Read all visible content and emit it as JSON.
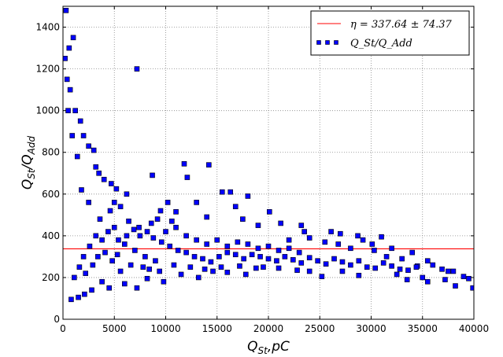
{
  "chart_data": {
    "type": "scatter",
    "xlabel": "Q",
    "xlabel_sub": "St",
    "xlabel_suffix": ",pC",
    "ylabel": "Q",
    "ylabel_sub1": "St",
    "ylabel_mid": "/Q",
    "ylabel_sub2": "Add",
    "xlim": [
      0,
      40000
    ],
    "ylim": [
      0,
      1500
    ],
    "xticks": [
      0,
      5000,
      10000,
      15000,
      20000,
      25000,
      30000,
      35000,
      40000
    ],
    "yticks": [
      0,
      200,
      400,
      600,
      800,
      1000,
      1200,
      1400
    ],
    "grid": true,
    "legend_position": "top-right",
    "reference_line": {
      "name": "η = 337.64 ± 74.37",
      "value": 337.64,
      "color": "#ff0000"
    },
    "series": [
      {
        "name": "Q_St/Q_Add",
        "marker": "square",
        "color": "#0000ff",
        "points": [
          [
            7200,
            1200
          ],
          [
            11800,
            745
          ],
          [
            14200,
            740
          ],
          [
            8700,
            690
          ],
          [
            12100,
            680
          ],
          [
            5200,
            625
          ],
          [
            6200,
            600
          ],
          [
            15500,
            610
          ],
          [
            16300,
            610
          ],
          [
            18000,
            590
          ],
          [
            10200,
            560
          ],
          [
            13000,
            560
          ],
          [
            16800,
            540
          ],
          [
            9500,
            520
          ],
          [
            11000,
            515
          ],
          [
            20100,
            515
          ],
          [
            14000,
            490
          ],
          [
            17500,
            480
          ],
          [
            21200,
            460
          ],
          [
            19000,
            450
          ],
          [
            23200,
            450
          ],
          [
            23500,
            420
          ],
          [
            26100,
            420
          ],
          [
            27000,
            410
          ],
          [
            28700,
            400
          ],
          [
            29200,
            380
          ],
          [
            31000,
            395
          ],
          [
            24000,
            390
          ],
          [
            22000,
            380
          ],
          [
            25500,
            370
          ],
          [
            26800,
            360
          ],
          [
            30100,
            360
          ],
          [
            28000,
            340
          ],
          [
            30300,
            330
          ],
          [
            32000,
            340
          ],
          [
            31500,
            300
          ],
          [
            34000,
            320
          ],
          [
            33000,
            290
          ],
          [
            35500,
            280
          ],
          [
            36000,
            260
          ],
          [
            34500,
            255
          ],
          [
            36900,
            240
          ],
          [
            37500,
            230
          ],
          [
            38000,
            230
          ],
          [
            39000,
            205
          ],
          [
            39500,
            195
          ],
          [
            33500,
            190
          ],
          [
            37200,
            190
          ],
          [
            35500,
            180
          ],
          [
            38200,
            160
          ],
          [
            39900,
            150
          ],
          [
            35000,
            200
          ],
          [
            32500,
            215
          ],
          [
            28800,
            210
          ],
          [
            27200,
            230
          ],
          [
            25200,
            205
          ],
          [
            24000,
            230
          ],
          [
            22800,
            235
          ],
          [
            21000,
            245
          ],
          [
            19500,
            250
          ],
          [
            17800,
            215
          ],
          [
            16000,
            225
          ],
          [
            14600,
            230
          ],
          [
            13200,
            200
          ],
          [
            11500,
            215
          ],
          [
            9800,
            180
          ],
          [
            8200,
            195
          ],
          [
            7200,
            150
          ],
          [
            6000,
            170
          ],
          [
            5600,
            230
          ],
          [
            3800,
            180
          ],
          [
            4500,
            150
          ],
          [
            2800,
            140
          ],
          [
            2100,
            120
          ],
          [
            1500,
            105
          ],
          [
            800,
            95
          ],
          [
            600,
            1300
          ],
          [
            300,
            1480
          ],
          [
            1000,
            1350
          ],
          [
            700,
            1100
          ],
          [
            1200,
            1000
          ],
          [
            1700,
            950
          ],
          [
            2000,
            880
          ],
          [
            2500,
            830
          ],
          [
            3000,
            810
          ],
          [
            3200,
            730
          ],
          [
            3500,
            700
          ],
          [
            4000,
            670
          ],
          [
            4700,
            650
          ],
          [
            5000,
            560
          ],
          [
            5600,
            540
          ],
          [
            4600,
            520
          ],
          [
            3600,
            480
          ],
          [
            2500,
            560
          ],
          [
            1800,
            620
          ],
          [
            1400,
            780
          ],
          [
            900,
            880
          ],
          [
            500,
            1000
          ],
          [
            400,
            1150
          ],
          [
            200,
            1250
          ],
          [
            6400,
            470
          ],
          [
            6900,
            430
          ],
          [
            7500,
            400
          ],
          [
            8200,
            420
          ],
          [
            8800,
            390
          ],
          [
            9600,
            370
          ],
          [
            10400,
            350
          ],
          [
            11200,
            330
          ],
          [
            12000,
            320
          ],
          [
            12800,
            300
          ],
          [
            13600,
            290
          ],
          [
            14400,
            275
          ],
          [
            15200,
            300
          ],
          [
            16000,
            320
          ],
          [
            16800,
            310
          ],
          [
            17600,
            290
          ],
          [
            18400,
            310
          ],
          [
            19200,
            300
          ],
          [
            20000,
            290
          ],
          [
            20800,
            280
          ],
          [
            21600,
            300
          ],
          [
            22400,
            285
          ],
          [
            23200,
            270
          ],
          [
            24000,
            295
          ],
          [
            24800,
            280
          ],
          [
            25600,
            265
          ],
          [
            26400,
            290
          ],
          [
            27200,
            275
          ],
          [
            28000,
            260
          ],
          [
            28800,
            280
          ],
          [
            29600,
            250
          ],
          [
            30400,
            245
          ],
          [
            31200,
            270
          ],
          [
            32000,
            255
          ],
          [
            32800,
            240
          ],
          [
            33600,
            235
          ],
          [
            34400,
            250
          ],
          [
            6000,
            360
          ],
          [
            7000,
            330
          ],
          [
            8000,
            300
          ],
          [
            9000,
            280
          ],
          [
            10000,
            420
          ],
          [
            11000,
            440
          ],
          [
            12000,
            400
          ],
          [
            13000,
            380
          ],
          [
            14000,
            360
          ],
          [
            15000,
            380
          ],
          [
            16000,
            350
          ],
          [
            17000,
            370
          ],
          [
            18000,
            360
          ],
          [
            19000,
            340
          ],
          [
            20000,
            350
          ],
          [
            21000,
            330
          ],
          [
            22000,
            340
          ],
          [
            23000,
            320
          ],
          [
            2000,
            300
          ],
          [
            2600,
            350
          ],
          [
            3200,
            400
          ],
          [
            3800,
            380
          ],
          [
            4400,
            420
          ],
          [
            5000,
            440
          ],
          [
            5400,
            380
          ],
          [
            6200,
            400
          ],
          [
            7400,
            440
          ],
          [
            8600,
            460
          ],
          [
            9200,
            480
          ],
          [
            10600,
            470
          ],
          [
            1100,
            200
          ],
          [
            1600,
            250
          ],
          [
            2200,
            220
          ],
          [
            2900,
            260
          ],
          [
            3400,
            300
          ],
          [
            4100,
            320
          ],
          [
            4800,
            280
          ],
          [
            5300,
            310
          ],
          [
            6600,
            260
          ],
          [
            7800,
            250
          ],
          [
            8400,
            240
          ],
          [
            9400,
            230
          ],
          [
            10800,
            260
          ],
          [
            12400,
            250
          ],
          [
            13800,
            240
          ],
          [
            15400,
            250
          ],
          [
            17200,
            255
          ],
          [
            18800,
            245
          ]
        ]
      }
    ]
  }
}
